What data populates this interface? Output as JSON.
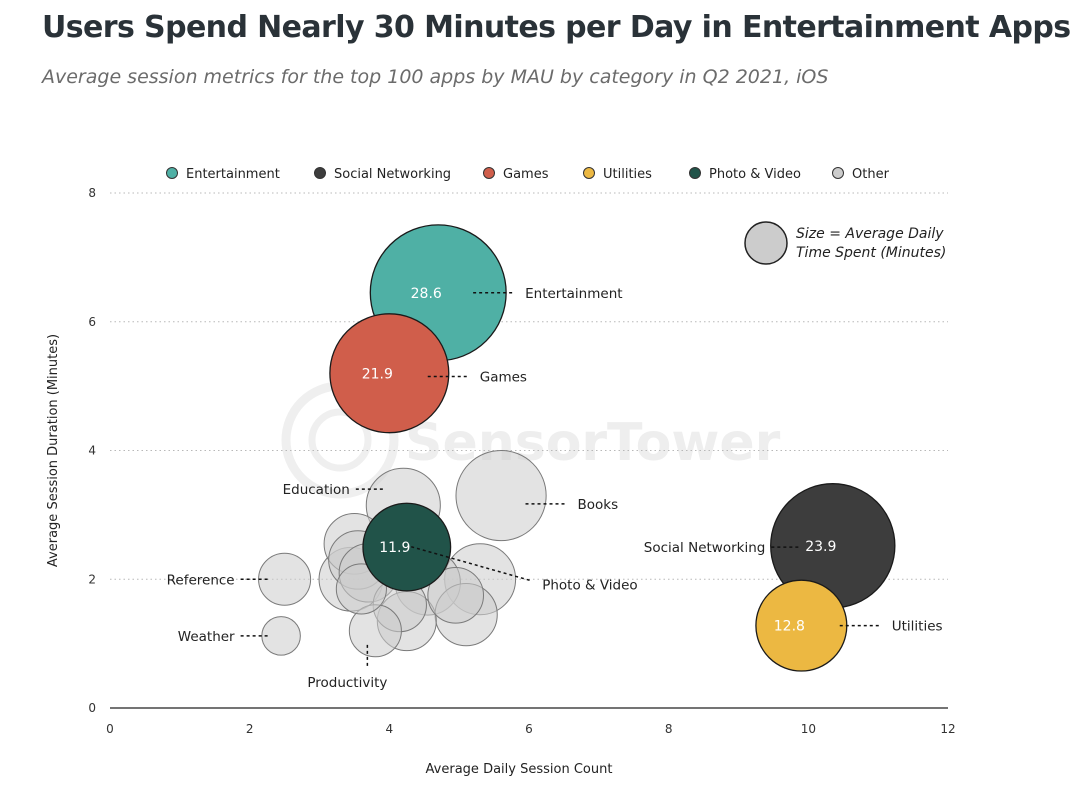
{
  "title": "Users Spend Nearly 30 Minutes per Day in Entertainment Apps",
  "subtitle": "Average session metrics for the top 100 apps by MAU by category in Q2 2021, iOS",
  "watermark": "SensorTower",
  "size_note": {
    "line1": "Size = Average Daily",
    "line2": "Time Spent (Minutes)"
  },
  "chart_data": {
    "type": "scatter",
    "xlabel": "Average Daily Session Count",
    "ylabel": "Average Session Duration (Minutes)",
    "xlim": [
      0,
      12
    ],
    "ylim": [
      0,
      8
    ],
    "xticks": [
      0,
      2,
      4,
      6,
      8,
      10,
      12
    ],
    "yticks": [
      0,
      2,
      4,
      6,
      8
    ],
    "grid": "horizontal-dotted",
    "legend_position": "top",
    "legend": [
      {
        "name": "Entertainment",
        "color": "#4fb0a5"
      },
      {
        "name": "Social Networking",
        "color": "#3d3d3d"
      },
      {
        "name": "Games",
        "color": "#d05e4b"
      },
      {
        "name": "Utilities",
        "color": "#ecb842"
      },
      {
        "name": "Photo & Video",
        "color": "#215349"
      },
      {
        "name": "Other",
        "color": "#cccccc"
      }
    ],
    "points": [
      {
        "category": "Other",
        "x": 5.6,
        "y": 3.3,
        "size": 12.6
      },
      {
        "category": "Other",
        "x": 4.2,
        "y": 3.15,
        "size": 8.5
      },
      {
        "category": "Other",
        "x": 5.3,
        "y": 2.0,
        "size": 7.8
      },
      {
        "category": "Other",
        "x": 3.5,
        "y": 2.55,
        "size": 5.7
      },
      {
        "category": "Other",
        "x": 3.55,
        "y": 2.3,
        "size": 5.3
      },
      {
        "category": "Other",
        "x": 3.45,
        "y": 2.0,
        "size": 6.3
      },
      {
        "category": "Other",
        "x": 3.7,
        "y": 2.1,
        "size": 5.3
      },
      {
        "category": "Other",
        "x": 3.6,
        "y": 1.85,
        "size": 3.9
      },
      {
        "category": "Other",
        "x": 4.55,
        "y": 1.95,
        "size": 6.6
      },
      {
        "category": "Other",
        "x": 4.95,
        "y": 1.75,
        "size": 4.8
      },
      {
        "category": "Other",
        "x": 5.1,
        "y": 1.45,
        "size": 6.0
      },
      {
        "category": "Other",
        "x": 4.15,
        "y": 1.6,
        "size": 4.4
      },
      {
        "category": "Other",
        "x": 4.25,
        "y": 1.35,
        "size": 5.4
      },
      {
        "category": "Other",
        "x": 3.8,
        "y": 1.2,
        "size": 4.2
      },
      {
        "category": "Other",
        "x": 2.5,
        "y": 2.0,
        "size": 4.2
      },
      {
        "category": "Other",
        "x": 2.45,
        "y": 1.12,
        "size": 2.3
      },
      {
        "category": "Entertainment",
        "x": 4.7,
        "y": 6.45,
        "size": 28.6,
        "value_label": "28.6"
      },
      {
        "category": "Games",
        "x": 4.0,
        "y": 5.2,
        "size": 21.9,
        "value_label": "21.9"
      },
      {
        "category": "Photo & Video",
        "x": 4.25,
        "y": 2.5,
        "size": 11.9,
        "value_label": "11.9"
      },
      {
        "category": "Social Networking",
        "x": 10.35,
        "y": 2.52,
        "size": 23.9,
        "value_label": "23.9"
      },
      {
        "category": "Utilities",
        "x": 9.9,
        "y": 1.28,
        "size": 12.8,
        "value_label": "12.8"
      }
    ],
    "callouts": [
      {
        "label": "Entertainment",
        "x": 5.2,
        "y": 6.45,
        "side": "right"
      },
      {
        "label": "Games",
        "x": 4.55,
        "y": 5.15,
        "side": "right"
      },
      {
        "label": "Education",
        "x": 3.95,
        "y": 3.4,
        "side": "left"
      },
      {
        "label": "Books",
        "x": 5.95,
        "y": 3.17,
        "side": "right"
      },
      {
        "label": "Social Networking",
        "x": 9.9,
        "y": 2.5,
        "side": "left"
      },
      {
        "label": "Photo & Video",
        "x": 4.6,
        "y": 2.35,
        "side": "right-down"
      },
      {
        "label": "Reference",
        "x": 2.3,
        "y": 2.0,
        "side": "left"
      },
      {
        "label": "Weather",
        "x": 2.3,
        "y": 1.12,
        "side": "left"
      },
      {
        "label": "Productivity",
        "x": 3.8,
        "y": 0.95,
        "side": "down"
      },
      {
        "label": "Utilities",
        "x": 10.45,
        "y": 1.28,
        "side": "right"
      }
    ]
  }
}
